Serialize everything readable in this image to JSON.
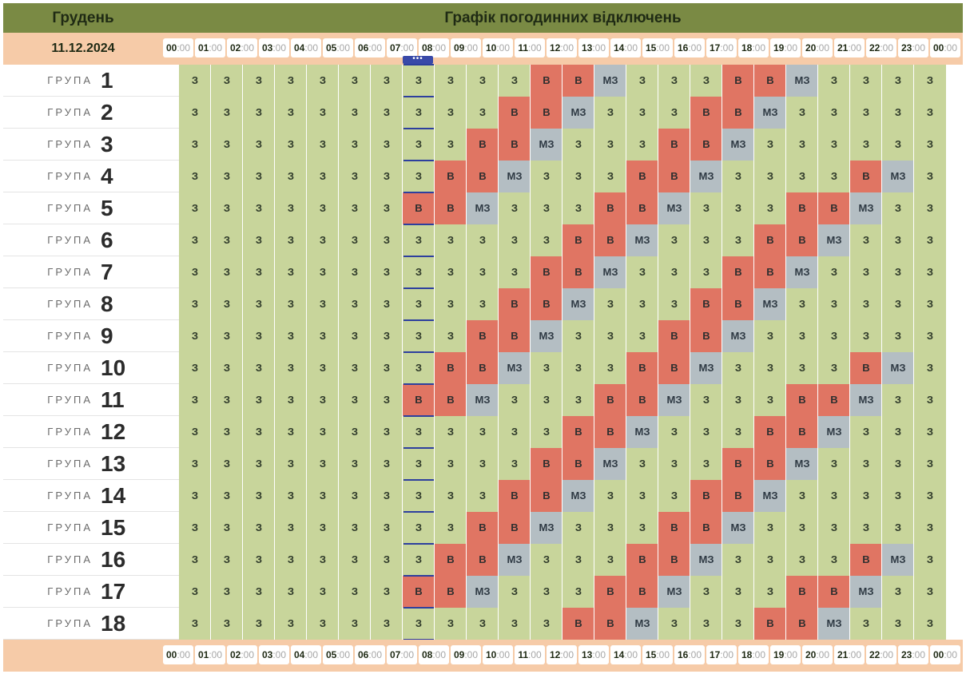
{
  "header": {
    "month": "Грудень",
    "title": "Графік погодинних відключень",
    "date": "11.12.2024"
  },
  "hours": [
    {
      "h": "00",
      "m": ":00"
    },
    {
      "h": "01",
      "m": ":00"
    },
    {
      "h": "02",
      "m": ":00"
    },
    {
      "h": "03",
      "m": ":00"
    },
    {
      "h": "04",
      "m": ":00"
    },
    {
      "h": "05",
      "m": ":00"
    },
    {
      "h": "06",
      "m": ":00"
    },
    {
      "h": "07",
      "m": ":00"
    },
    {
      "h": "08",
      "m": ":00"
    },
    {
      "h": "09",
      "m": ":00"
    },
    {
      "h": "10",
      "m": ":00"
    },
    {
      "h": "11",
      "m": ":00"
    },
    {
      "h": "12",
      "m": ":00"
    },
    {
      "h": "13",
      "m": ":00"
    },
    {
      "h": "14",
      "m": ":00"
    },
    {
      "h": "15",
      "m": ":00"
    },
    {
      "h": "16",
      "m": ":00"
    },
    {
      "h": "17",
      "m": ":00"
    },
    {
      "h": "18",
      "m": ":00"
    },
    {
      "h": "19",
      "m": ":00"
    },
    {
      "h": "20",
      "m": ":00"
    },
    {
      "h": "21",
      "m": ":00"
    },
    {
      "h": "22",
      "m": ":00"
    },
    {
      "h": "23",
      "m": ":00"
    },
    {
      "h": "00",
      "m": ":00"
    }
  ],
  "current_hour_marker": "•••",
  "current_hour_index": 7,
  "group_word": "ГРУПА",
  "status_colors": {
    "З": "#c8d59b",
    "В": "#e07563",
    "МЗ": "#b4bec3"
  },
  "groups": [
    {
      "num": "1",
      "slots": [
        "З",
        "З",
        "З",
        "З",
        "З",
        "З",
        "З",
        "З",
        "З",
        "З",
        "З",
        "В",
        "В",
        "МЗ",
        "З",
        "З",
        "З",
        "В",
        "В",
        "МЗ",
        "З",
        "З",
        "З",
        "З"
      ]
    },
    {
      "num": "2",
      "slots": [
        "З",
        "З",
        "З",
        "З",
        "З",
        "З",
        "З",
        "З",
        "З",
        "З",
        "В",
        "В",
        "МЗ",
        "З",
        "З",
        "З",
        "В",
        "В",
        "МЗ",
        "З",
        "З",
        "З",
        "З",
        "З"
      ]
    },
    {
      "num": "3",
      "slots": [
        "З",
        "З",
        "З",
        "З",
        "З",
        "З",
        "З",
        "З",
        "З",
        "В",
        "В",
        "МЗ",
        "З",
        "З",
        "З",
        "В",
        "В",
        "МЗ",
        "З",
        "З",
        "З",
        "З",
        "З",
        "З"
      ]
    },
    {
      "num": "4",
      "slots": [
        "З",
        "З",
        "З",
        "З",
        "З",
        "З",
        "З",
        "З",
        "В",
        "В",
        "МЗ",
        "З",
        "З",
        "З",
        "В",
        "В",
        "МЗ",
        "З",
        "З",
        "З",
        "З",
        "В",
        "МЗ",
        "З"
      ]
    },
    {
      "num": "5",
      "slots": [
        "З",
        "З",
        "З",
        "З",
        "З",
        "З",
        "З",
        "В",
        "В",
        "МЗ",
        "З",
        "З",
        "З",
        "В",
        "В",
        "МЗ",
        "З",
        "З",
        "З",
        "В",
        "В",
        "МЗ",
        "З",
        "З"
      ]
    },
    {
      "num": "6",
      "slots": [
        "З",
        "З",
        "З",
        "З",
        "З",
        "З",
        "З",
        "З",
        "З",
        "З",
        "З",
        "З",
        "В",
        "В",
        "МЗ",
        "З",
        "З",
        "З",
        "В",
        "В",
        "МЗ",
        "З",
        "З",
        "З"
      ]
    },
    {
      "num": "7",
      "slots": [
        "З",
        "З",
        "З",
        "З",
        "З",
        "З",
        "З",
        "З",
        "З",
        "З",
        "З",
        "В",
        "В",
        "МЗ",
        "З",
        "З",
        "З",
        "В",
        "В",
        "МЗ",
        "З",
        "З",
        "З",
        "З"
      ]
    },
    {
      "num": "8",
      "slots": [
        "З",
        "З",
        "З",
        "З",
        "З",
        "З",
        "З",
        "З",
        "З",
        "З",
        "В",
        "В",
        "МЗ",
        "З",
        "З",
        "З",
        "В",
        "В",
        "МЗ",
        "З",
        "З",
        "З",
        "З",
        "З"
      ]
    },
    {
      "num": "9",
      "slots": [
        "З",
        "З",
        "З",
        "З",
        "З",
        "З",
        "З",
        "З",
        "З",
        "В",
        "В",
        "МЗ",
        "З",
        "З",
        "З",
        "В",
        "В",
        "МЗ",
        "З",
        "З",
        "З",
        "З",
        "З",
        "З"
      ]
    },
    {
      "num": "10",
      "slots": [
        "З",
        "З",
        "З",
        "З",
        "З",
        "З",
        "З",
        "З",
        "В",
        "В",
        "МЗ",
        "З",
        "З",
        "З",
        "В",
        "В",
        "МЗ",
        "З",
        "З",
        "З",
        "З",
        "В",
        "МЗ",
        "З"
      ]
    },
    {
      "num": "11",
      "slots": [
        "З",
        "З",
        "З",
        "З",
        "З",
        "З",
        "З",
        "В",
        "В",
        "МЗ",
        "З",
        "З",
        "З",
        "В",
        "В",
        "МЗ",
        "З",
        "З",
        "З",
        "В",
        "В",
        "МЗ",
        "З",
        "З"
      ]
    },
    {
      "num": "12",
      "slots": [
        "З",
        "З",
        "З",
        "З",
        "З",
        "З",
        "З",
        "З",
        "З",
        "З",
        "З",
        "З",
        "В",
        "В",
        "МЗ",
        "З",
        "З",
        "З",
        "В",
        "В",
        "МЗ",
        "З",
        "З",
        "З"
      ]
    },
    {
      "num": "13",
      "slots": [
        "З",
        "З",
        "З",
        "З",
        "З",
        "З",
        "З",
        "З",
        "З",
        "З",
        "З",
        "В",
        "В",
        "МЗ",
        "З",
        "З",
        "З",
        "В",
        "В",
        "МЗ",
        "З",
        "З",
        "З",
        "З"
      ]
    },
    {
      "num": "14",
      "slots": [
        "З",
        "З",
        "З",
        "З",
        "З",
        "З",
        "З",
        "З",
        "З",
        "З",
        "В",
        "В",
        "МЗ",
        "З",
        "З",
        "З",
        "В",
        "В",
        "МЗ",
        "З",
        "З",
        "З",
        "З",
        "З"
      ]
    },
    {
      "num": "15",
      "slots": [
        "З",
        "З",
        "З",
        "З",
        "З",
        "З",
        "З",
        "З",
        "З",
        "В",
        "В",
        "МЗ",
        "З",
        "З",
        "З",
        "В",
        "В",
        "МЗ",
        "З",
        "З",
        "З",
        "З",
        "З",
        "З"
      ]
    },
    {
      "num": "16",
      "slots": [
        "З",
        "З",
        "З",
        "З",
        "З",
        "З",
        "З",
        "З",
        "В",
        "В",
        "МЗ",
        "З",
        "З",
        "З",
        "В",
        "В",
        "МЗ",
        "З",
        "З",
        "З",
        "З",
        "В",
        "МЗ",
        "З"
      ]
    },
    {
      "num": "17",
      "slots": [
        "З",
        "З",
        "З",
        "З",
        "З",
        "З",
        "З",
        "В",
        "В",
        "МЗ",
        "З",
        "З",
        "З",
        "В",
        "В",
        "МЗ",
        "З",
        "З",
        "З",
        "В",
        "В",
        "МЗ",
        "З",
        "З"
      ]
    },
    {
      "num": "18",
      "slots": [
        "З",
        "З",
        "З",
        "З",
        "З",
        "З",
        "З",
        "З",
        "З",
        "З",
        "З",
        "З",
        "В",
        "В",
        "МЗ",
        "З",
        "З",
        "З",
        "В",
        "В",
        "МЗ",
        "З",
        "З",
        "З"
      ]
    }
  ]
}
